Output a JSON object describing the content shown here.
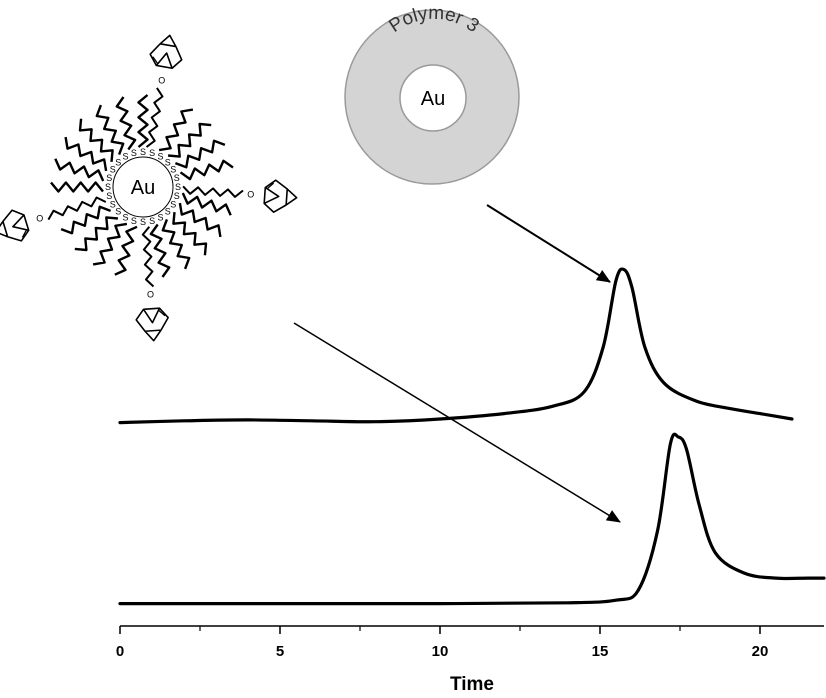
{
  "chart_data": {
    "type": "line",
    "xlabel": "Time",
    "ylabel": "",
    "xlim": [
      0,
      22
    ],
    "x_ticks": [
      0,
      5,
      10,
      15,
      20
    ],
    "x_ticks_minor": [
      2.5,
      7.5,
      12.5,
      17.5
    ],
    "grid": false,
    "y_scale": "relative intensity (no axis shown)",
    "series": [
      {
        "points": [
          [
            0,
            0.03
          ],
          [
            2,
            0.04
          ],
          [
            4,
            0.045
          ],
          [
            6,
            0.04
          ],
          [
            8,
            0.035
          ],
          [
            10,
            0.05
          ],
          [
            12,
            0.08
          ],
          [
            13.5,
            0.12
          ],
          [
            14.5,
            0.2
          ],
          [
            15.1,
            0.45
          ],
          [
            15.5,
            0.82
          ],
          [
            15.75,
            0.88
          ],
          [
            16.0,
            0.78
          ],
          [
            16.4,
            0.45
          ],
          [
            17.0,
            0.25
          ],
          [
            18,
            0.15
          ],
          [
            19,
            0.11
          ],
          [
            20,
            0.08
          ],
          [
            21,
            0.05
          ]
        ]
      },
      {
        "points": [
          [
            0,
            0.02
          ],
          [
            5,
            0.02
          ],
          [
            10,
            0.02
          ],
          [
            14,
            0.025
          ],
          [
            15.5,
            0.04
          ],
          [
            16.2,
            0.1
          ],
          [
            16.8,
            0.45
          ],
          [
            17.2,
            0.96
          ],
          [
            17.45,
            1.0
          ],
          [
            17.7,
            0.93
          ],
          [
            18.1,
            0.6
          ],
          [
            18.6,
            0.32
          ],
          [
            19.5,
            0.2
          ],
          [
            20.5,
            0.17
          ],
          [
            21.5,
            0.17
          ],
          [
            22,
            0.17
          ]
        ]
      }
    ],
    "annotations": {
      "core_shell_label": "Polymer 3",
      "core_label": "Au",
      "nanoparticle_label": "Au",
      "sulfur_label": "S",
      "ligand_oxygen_label": "O"
    }
  }
}
